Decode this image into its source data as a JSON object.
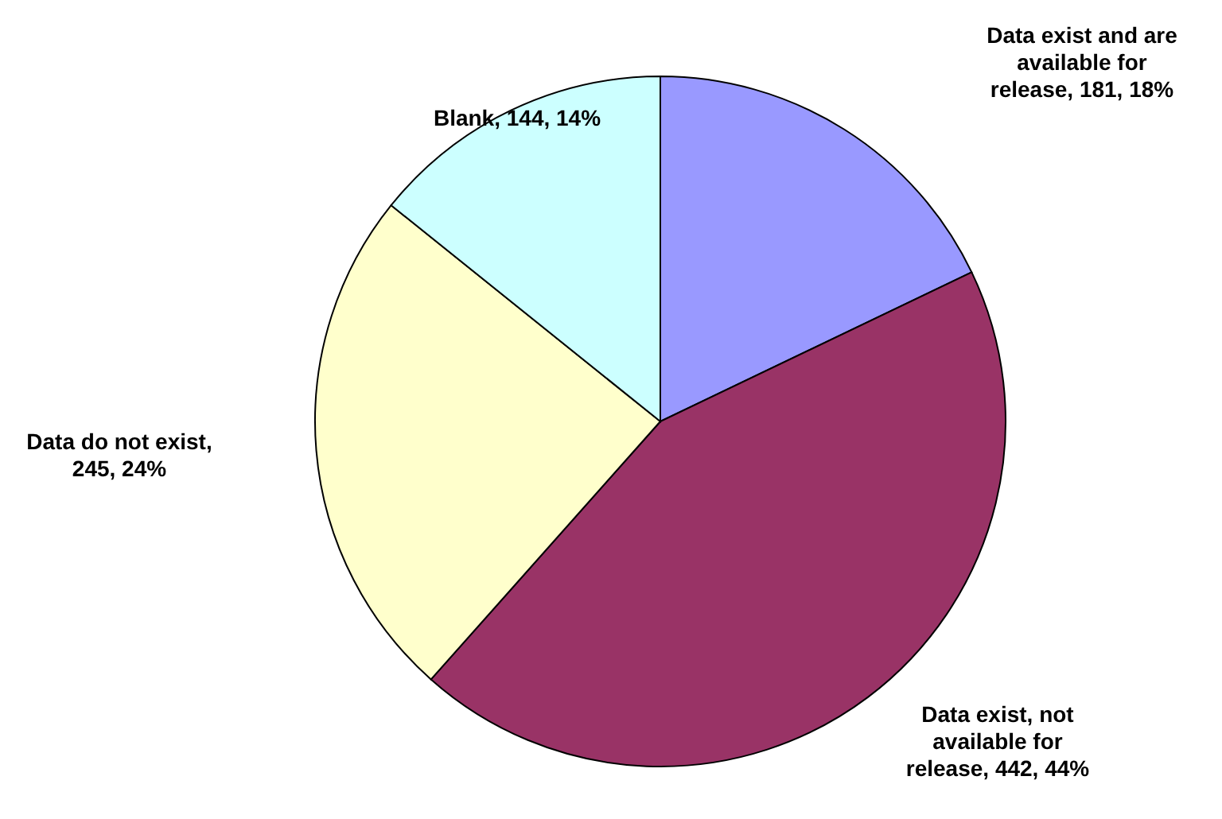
{
  "chart_data": {
    "type": "pie",
    "categories": [
      "Data exist and are available for release",
      "Data exist, not available for release",
      "Data do not exist",
      "Blank"
    ],
    "values": [
      181,
      442,
      245,
      144
    ],
    "value_labels": [
      ", 181, 18%",
      ", 442, 44%",
      ", 245, 24%",
      ", 144, 14%"
    ],
    "colors": [
      "#9999ff",
      "#993366",
      "#ffffcc",
      "#ccffff"
    ]
  }
}
